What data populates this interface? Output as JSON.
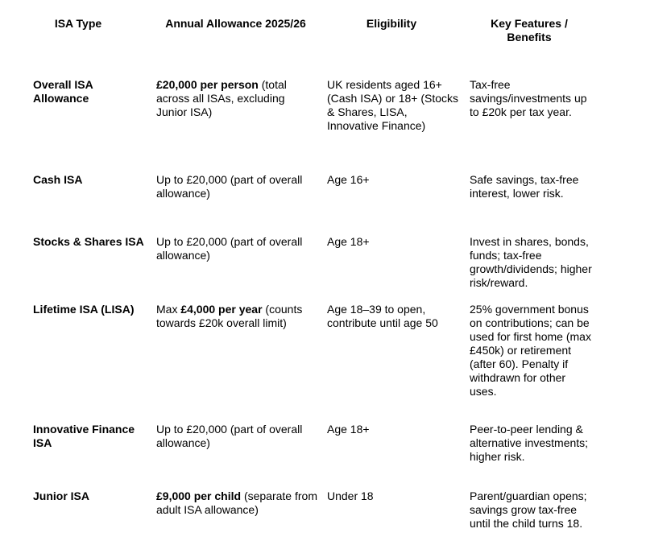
{
  "headers": [
    "ISA Type",
    "Annual Allowance 2025/26",
    "Eligibility",
    "Key Features / Benefits"
  ],
  "rows": [
    {
      "type": "Overall ISA Allowance",
      "allow_pre": "",
      "allow_bold": "£20,000 per person",
      "allow_rest": " (total across all ISAs, excluding Junior ISA)",
      "eligibility": "UK residents aged 16+ (Cash ISA) or 18+ (Stocks & Shares, LISA, Innovative Finance)",
      "features": "Tax-free savings/investments up to £20k per tax year."
    },
    {
      "type": "Cash ISA",
      "allow_pre": "Up to £20,000 (part of overall allowance)",
      "allow_bold": "",
      "allow_rest": "",
      "eligibility": "Age 16+",
      "features": "Safe savings, tax-free interest, lower risk."
    },
    {
      "type": "Stocks & Shares ISA",
      "allow_pre": "Up to £20,000 (part of overall allowance)",
      "allow_bold": "",
      "allow_rest": "",
      "eligibility": "Age 18+",
      "features": "Invest in shares, bonds, funds; tax-free growth/dividends; higher risk/reward."
    },
    {
      "type": "Lifetime ISA (LISA)",
      "allow_pre": "Max ",
      "allow_bold": "£4,000 per year",
      "allow_rest": " (counts towards £20k overall limit)",
      "eligibility": "Age 18–39 to open, contribute until age 50",
      "features": "25% government bonus on contributions; can be used for first home (max £450k) or retirement (after 60). Penalty if withdrawn for other uses."
    },
    {
      "type": "Innovative Finance ISA",
      "allow_pre": "Up to £20,000 (part of overall allowance)",
      "allow_bold": "",
      "allow_rest": "",
      "eligibility": "Age 18+",
      "features": "Peer-to-peer lending & alternative investments; higher risk."
    },
    {
      "type": "Junior ISA",
      "allow_pre": "",
      "allow_bold": "£9,000 per child",
      "allow_rest": " (separate from adult ISA allowance)",
      "eligibility": "Under 18",
      "features": "Parent/guardian opens; savings grow tax-free until the child turns 18."
    }
  ]
}
